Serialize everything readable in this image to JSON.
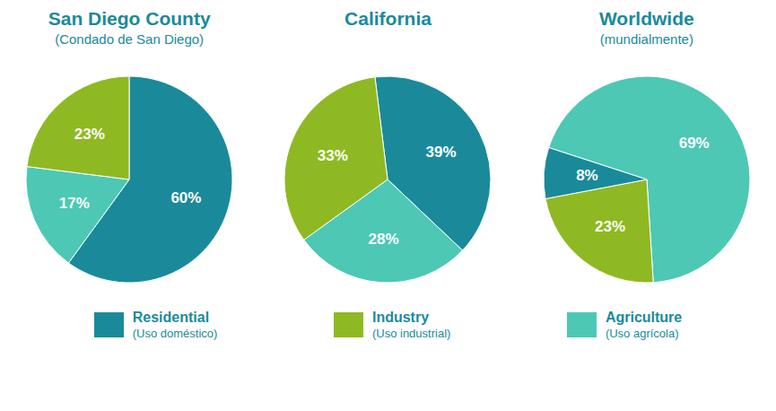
{
  "chart_data": [
    {
      "type": "pie",
      "title": "San Diego County",
      "subtitle": "(Condado de San Diego)",
      "categories": [
        "Residential",
        "Agriculture",
        "Industry"
      ],
      "values": [
        60,
        17,
        23
      ],
      "value_labels": [
        "60%",
        "17%",
        "23%"
      ],
      "colors": [
        "#1a8a9a",
        "#4dc8b4",
        "#8fb922"
      ],
      "data_labels": true
    },
    {
      "type": "pie",
      "title": "California",
      "categories": [
        "Residential",
        "Agriculture",
        "Industry"
      ],
      "values": [
        39,
        28,
        33
      ],
      "value_labels": [
        "39%",
        "28%",
        "33%"
      ],
      "colors": [
        "#1a8a9a",
        "#4dc8b4",
        "#8fb922"
      ],
      "data_labels": true
    },
    {
      "type": "pie",
      "title": "Worldwide",
      "subtitle": "(mundialmente)",
      "categories": [
        "Agriculture",
        "Industry",
        "Residential"
      ],
      "values": [
        69,
        23,
        8
      ],
      "value_labels": [
        "69%",
        "23%",
        "8%"
      ],
      "colors": [
        "#4dc8b4",
        "#8fb922",
        "#1a8a9a"
      ],
      "data_labels": true
    }
  ],
  "legend": "bottom",
  "series": [
    {
      "name": "Residential",
      "subtitle": "(Uso doméstico)",
      "color": "#1a8a9a"
    },
    {
      "name": "Industry",
      "subtitle": "(Uso industrial)",
      "color": "#8fb922"
    },
    {
      "name": "Agriculture",
      "subtitle": "(Uso agrícola)",
      "color": "#4dc8b4"
    }
  ]
}
